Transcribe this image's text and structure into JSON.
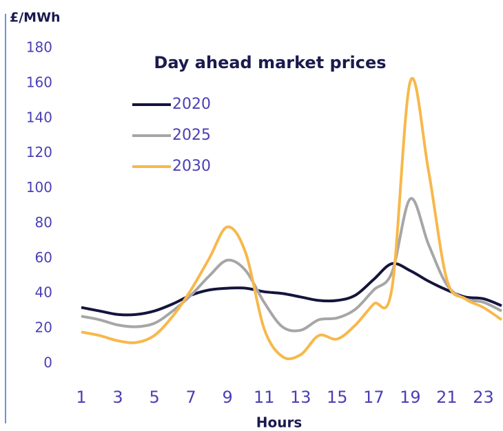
{
  "chart_data": {
    "type": "line",
    "title": "Day ahead market prices",
    "ylabel": "£/MWh",
    "xlabel": "Hours",
    "x": [
      1,
      2,
      3,
      4,
      5,
      6,
      7,
      8,
      9,
      10,
      11,
      12,
      13,
      14,
      15,
      16,
      17,
      18,
      19,
      20,
      21,
      22,
      23,
      24
    ],
    "series": [
      {
        "name": "2020",
        "color": "#14143c",
        "values": [
          32,
          30,
          28,
          28,
          30,
          34,
          39,
          42,
          43,
          43,
          41,
          40,
          38,
          36,
          36,
          39,
          48,
          57,
          53,
          47,
          42,
          38,
          37,
          33
        ]
      },
      {
        "name": "2025",
        "color": "#a6a6a6",
        "values": [
          27,
          25,
          22,
          21,
          23,
          30,
          39,
          50,
          59,
          53,
          35,
          21,
          19,
          25,
          26,
          31,
          42,
          52,
          94,
          68,
          45,
          37,
          35,
          30
        ]
      },
      {
        "name": "2030",
        "color": "#f7b84b",
        "values": [
          18,
          16,
          13,
          12,
          16,
          27,
          42,
          60,
          78,
          63,
          20,
          4,
          5,
          16,
          14,
          22,
          34,
          43,
          161,
          110,
          48,
          37,
          32,
          25
        ]
      }
    ],
    "xlim": [
      1,
      24
    ],
    "xticks": [
      1,
      3,
      5,
      7,
      9,
      11,
      13,
      15,
      17,
      19,
      21,
      23
    ],
    "ylim": [
      0,
      180
    ],
    "yticks": [
      0,
      20,
      40,
      60,
      80,
      100,
      120,
      140,
      160,
      180
    ],
    "legend": "upper left"
  }
}
